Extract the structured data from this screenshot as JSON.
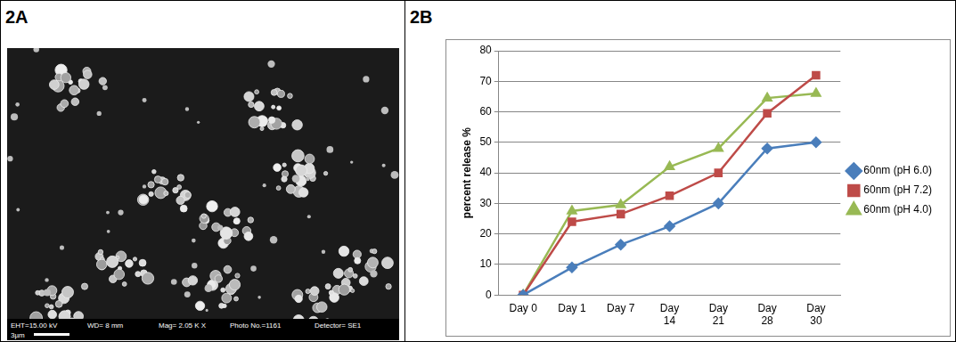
{
  "panel_labels": [
    "2A",
    "2B"
  ],
  "image": {
    "info": [
      "EHT=15.00 kV",
      "WD= 8 mm",
      "Mag= 2.05 K X",
      "Photo No.=1161",
      "Detector= SE1"
    ],
    "scale_bar": "3µm"
  },
  "chart_data": {
    "type": "line",
    "y_label": "percent release %",
    "categories": [
      "Day 0",
      "Day 1",
      "Day 7",
      "Day 14",
      "Day 21",
      "Day 28",
      "Day 30"
    ],
    "series": [
      {
        "name": "60nm (pH 6.0)",
        "color": "#4a7ebb",
        "marker": "diamond",
        "values": [
          0,
          9,
          16.5,
          22.5,
          30,
          48,
          50
        ]
      },
      {
        "name": "60nm (pH 7.2)",
        "color": "#be4b48",
        "marker": "square",
        "values": [
          0,
          24,
          26.5,
          32.5,
          40,
          59.5,
          72
        ]
      },
      {
        "name": "60nm (pH 4.0)",
        "color": "#98b954",
        "marker": "triangle",
        "values": [
          0,
          27.5,
          29.5,
          42,
          48,
          64.5,
          66
        ]
      }
    ],
    "ylim": [
      0,
      80
    ],
    "yticks": [
      0,
      10,
      20,
      30,
      40,
      50,
      60,
      70,
      80
    ],
    "grid": true,
    "legend": "right"
  }
}
